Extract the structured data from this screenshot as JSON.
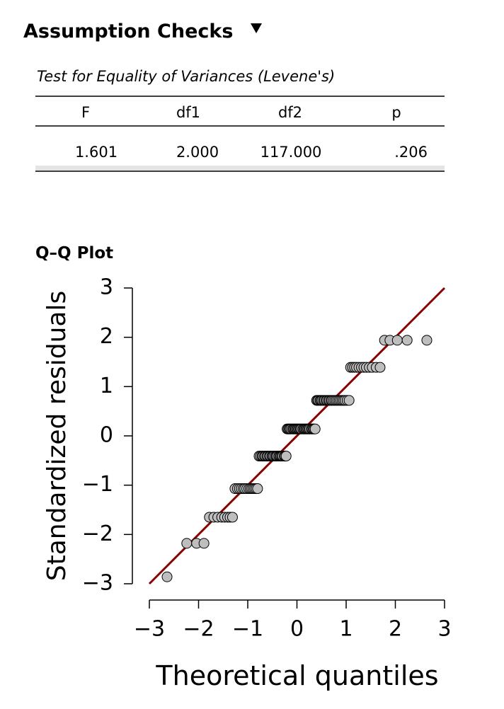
{
  "section_title": "Assumption Checks",
  "table": {
    "title": "Test for Equality of Variances (Levene's)",
    "columns": [
      "F",
      "df1",
      "df2",
      "p"
    ],
    "rows": [
      [
        "1.601",
        "2.000",
        "117.000",
        ".206"
      ]
    ]
  },
  "chart_data": {
    "type": "scatter",
    "title": "Q–Q Plot",
    "x_label": "Theoretical quantiles",
    "y_label": "Standardized residuals",
    "x": [
      -2.64,
      -2.24,
      -2.04,
      -1.89,
      -1.78,
      -1.69,
      -1.61,
      -1.53,
      -1.47,
      -1.41,
      -1.36,
      -1.31,
      -1.26,
      -1.21,
      -1.17,
      -1.13,
      -1.09,
      -1.06,
      -1.02,
      -0.98,
      -0.95,
      -0.92,
      -0.89,
      -0.86,
      -0.83,
      -0.8,
      -0.77,
      -0.74,
      -0.71,
      -0.69,
      -0.66,
      -0.64,
      -0.61,
      -0.59,
      -0.56,
      -0.54,
      -0.51,
      -0.49,
      -0.47,
      -0.44,
      -0.42,
      -0.4,
      -0.37,
      -0.35,
      -0.33,
      -0.31,
      -0.29,
      -0.26,
      -0.24,
      -0.22,
      -0.2,
      -0.18,
      -0.16,
      -0.14,
      -0.12,
      -0.09,
      -0.07,
      -0.05,
      -0.03,
      -0.01,
      0.01,
      0.03,
      0.05,
      0.07,
      0.09,
      0.12,
      0.14,
      0.16,
      0.18,
      0.2,
      0.22,
      0.24,
      0.26,
      0.29,
      0.31,
      0.33,
      0.35,
      0.37,
      0.4,
      0.42,
      0.44,
      0.47,
      0.49,
      0.51,
      0.54,
      0.56,
      0.59,
      0.61,
      0.64,
      0.66,
      0.69,
      0.71,
      0.74,
      0.77,
      0.8,
      0.83,
      0.86,
      0.89,
      0.92,
      0.95,
      0.98,
      1.02,
      1.06,
      1.09,
      1.13,
      1.17,
      1.21,
      1.26,
      1.31,
      1.36,
      1.41,
      1.47,
      1.53,
      1.61,
      1.69,
      1.78,
      1.89,
      2.04,
      2.24,
      2.64
    ],
    "values": [
      -2.86,
      -2.18,
      -2.18,
      -2.18,
      -1.65,
      -1.65,
      -1.65,
      -1.65,
      -1.65,
      -1.65,
      -1.65,
      -1.65,
      -1.07,
      -1.07,
      -1.07,
      -1.07,
      -1.07,
      -1.07,
      -1.07,
      -1.07,
      -1.07,
      -1.07,
      -1.07,
      -1.07,
      -1.07,
      -1.07,
      -0.41,
      -0.41,
      -0.41,
      -0.41,
      -0.41,
      -0.41,
      -0.41,
      -0.41,
      -0.41,
      -0.41,
      -0.41,
      -0.41,
      -0.41,
      -0.41,
      -0.41,
      -0.41,
      -0.41,
      -0.41,
      -0.41,
      -0.41,
      -0.41,
      -0.41,
      -0.41,
      -0.41,
      0.14,
      0.14,
      0.14,
      0.14,
      0.14,
      0.14,
      0.14,
      0.14,
      0.14,
      0.14,
      0.14,
      0.14,
      0.14,
      0.14,
      0.14,
      0.14,
      0.14,
      0.14,
      0.14,
      0.14,
      0.14,
      0.14,
      0.14,
      0.14,
      0.14,
      0.14,
      0.14,
      0.14,
      0.72,
      0.72,
      0.72,
      0.72,
      0.72,
      0.72,
      0.72,
      0.72,
      0.72,
      0.72,
      0.72,
      0.72,
      0.72,
      0.72,
      0.72,
      0.72,
      0.72,
      0.72,
      0.72,
      0.72,
      0.72,
      0.72,
      0.72,
      0.72,
      0.72,
      1.39,
      1.39,
      1.39,
      1.39,
      1.39,
      1.39,
      1.39,
      1.39,
      1.39,
      1.39,
      1.39,
      1.39,
      1.94,
      1.94,
      1.94,
      1.94,
      1.94
    ],
    "color": "#bebebe",
    "line_color": "#8b0000",
    "xlim": [
      -3,
      3
    ],
    "ylim": [
      -3,
      3
    ],
    "xticks": [
      {
        "value": -3,
        "label": "−3"
      },
      {
        "value": -2,
        "label": "−2"
      },
      {
        "value": -1,
        "label": "−1"
      },
      0,
      1,
      2,
      3
    ],
    "yticks": [
      {
        "value": -3,
        "label": "−3"
      },
      {
        "value": -2,
        "label": "−2"
      },
      {
        "value": -1,
        "label": "−1"
      },
      0,
      1,
      2,
      3
    ]
  }
}
